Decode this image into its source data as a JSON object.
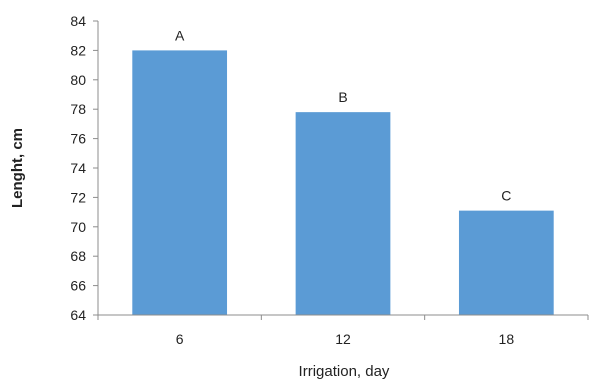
{
  "chart_data": {
    "type": "bar",
    "categories": [
      "6",
      "12",
      "18"
    ],
    "values": [
      82.0,
      77.8,
      71.1
    ],
    "data_labels": [
      "A",
      "B",
      "C"
    ],
    "title": "",
    "xlabel": "Irrigation, day",
    "ylabel": "Lenght, cm",
    "ylim": [
      64,
      84
    ],
    "yticks": [
      64,
      66,
      68,
      70,
      72,
      74,
      76,
      78,
      80,
      82,
      84
    ],
    "grid": false,
    "legend": "none",
    "bar_color": "#5b9bd5"
  }
}
